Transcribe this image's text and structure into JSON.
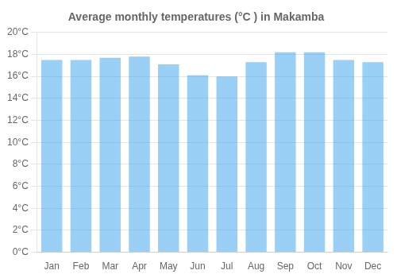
{
  "chart_data": {
    "type": "bar",
    "title": "Average monthly temperatures (°C ) in Makamba",
    "categories": [
      "Jan",
      "Feb",
      "Mar",
      "Apr",
      "May",
      "Jun",
      "Jul",
      "Aug",
      "Sep",
      "Oct",
      "Nov",
      "Dec"
    ],
    "values": [
      17.5,
      17.5,
      17.7,
      17.8,
      17.1,
      16.1,
      16.0,
      17.3,
      18.2,
      18.2,
      17.5,
      17.3
    ],
    "ylim": [
      0,
      20
    ],
    "yticks": [
      {
        "value": 0,
        "label": "0°C"
      },
      {
        "value": 2,
        "label": "2°C"
      },
      {
        "value": 4,
        "label": "4°C"
      },
      {
        "value": 6,
        "label": "6°C"
      },
      {
        "value": 8,
        "label": "8°C"
      },
      {
        "value": 10,
        "label": "10°C"
      },
      {
        "value": 12,
        "label": "12°C"
      },
      {
        "value": 14,
        "label": "14°C"
      },
      {
        "value": 16,
        "label": "16°C"
      },
      {
        "value": 18,
        "label": "18°C"
      },
      {
        "value": 20,
        "label": "20°C"
      }
    ],
    "grid": true
  }
}
